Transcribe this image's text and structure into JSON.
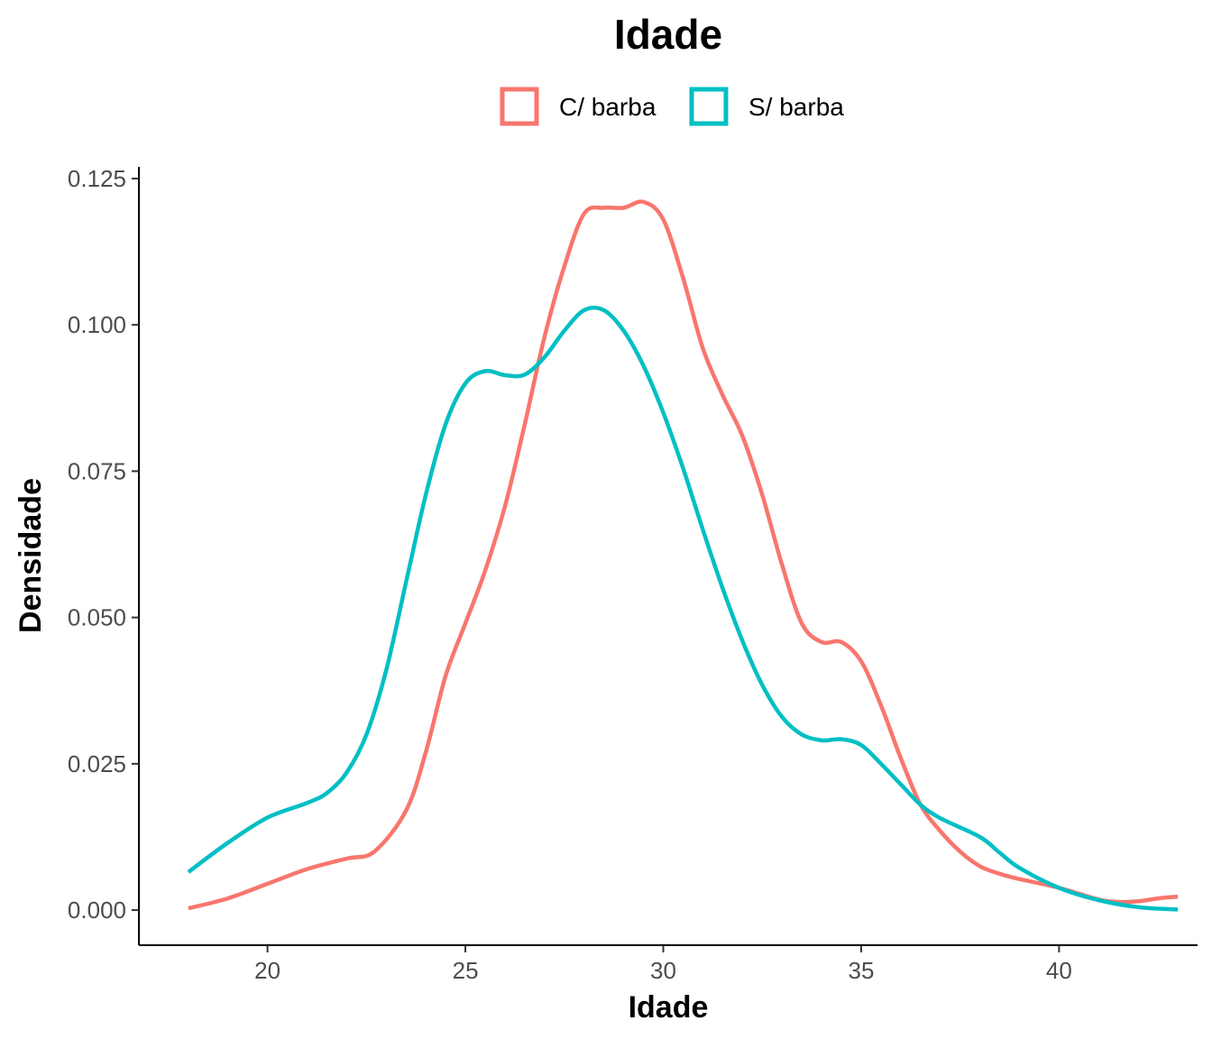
{
  "chart_data": {
    "type": "line",
    "title": "Idade",
    "xlabel": "Idade",
    "ylabel": "Densidade",
    "xlim": [
      16.75,
      43.5
    ],
    "ylim": [
      -0.006,
      0.127
    ],
    "x_ticks": [
      20,
      25,
      30,
      35,
      40
    ],
    "x_tick_labels": [
      "20",
      "25",
      "30",
      "35",
      "40"
    ],
    "y_ticks": [
      0.0,
      0.025,
      0.05,
      0.075,
      0.1,
      0.125
    ],
    "y_tick_labels": [
      "0.000",
      "0.025",
      "0.050",
      "0.075",
      "0.100",
      "0.125"
    ],
    "grid": false,
    "legend_position": "top",
    "series": [
      {
        "name": "C/ barba",
        "color": "#F8766D",
        "points": [
          [
            18.0,
            0.0003
          ],
          [
            19.0,
            0.002
          ],
          [
            20.0,
            0.0045
          ],
          [
            21.0,
            0.007
          ],
          [
            22.0,
            0.0088
          ],
          [
            22.7,
            0.01
          ],
          [
            23.5,
            0.017
          ],
          [
            24.0,
            0.027
          ],
          [
            24.5,
            0.04
          ],
          [
            25.0,
            0.049
          ],
          [
            25.5,
            0.058
          ],
          [
            26.0,
            0.069
          ],
          [
            26.5,
            0.083
          ],
          [
            27.0,
            0.098
          ],
          [
            27.5,
            0.11
          ],
          [
            28.0,
            0.119
          ],
          [
            28.5,
            0.12
          ],
          [
            29.0,
            0.12
          ],
          [
            29.5,
            0.121
          ],
          [
            30.0,
            0.118
          ],
          [
            30.5,
            0.108
          ],
          [
            31.0,
            0.096
          ],
          [
            31.5,
            0.088
          ],
          [
            32.0,
            0.081
          ],
          [
            32.5,
            0.071
          ],
          [
            33.0,
            0.059
          ],
          [
            33.5,
            0.049
          ],
          [
            34.0,
            0.0458
          ],
          [
            34.5,
            0.0458
          ],
          [
            35.0,
            0.0425
          ],
          [
            35.5,
            0.035
          ],
          [
            36.0,
            0.026
          ],
          [
            36.5,
            0.018
          ],
          [
            37.0,
            0.0135
          ],
          [
            37.5,
            0.01
          ],
          [
            38.0,
            0.0075
          ],
          [
            38.5,
            0.0062
          ],
          [
            39.0,
            0.0053
          ],
          [
            40.0,
            0.0038
          ],
          [
            41.0,
            0.0018
          ],
          [
            41.5,
            0.0014
          ],
          [
            42.0,
            0.0015
          ],
          [
            42.5,
            0.002
          ],
          [
            43.0,
            0.0023
          ]
        ]
      },
      {
        "name": "S/ barba",
        "color": "#00BFC4",
        "points": [
          [
            18.0,
            0.0065
          ],
          [
            19.0,
            0.0115
          ],
          [
            20.0,
            0.0158
          ],
          [
            21.0,
            0.0183
          ],
          [
            21.5,
            0.02
          ],
          [
            22.0,
            0.0235
          ],
          [
            22.5,
            0.03
          ],
          [
            23.0,
            0.041
          ],
          [
            23.5,
            0.056
          ],
          [
            24.0,
            0.071
          ],
          [
            24.5,
            0.083
          ],
          [
            25.0,
            0.09
          ],
          [
            25.5,
            0.0921
          ],
          [
            26.0,
            0.0914
          ],
          [
            26.5,
            0.0915
          ],
          [
            27.0,
            0.0945
          ],
          [
            27.5,
            0.099
          ],
          [
            28.0,
            0.1025
          ],
          [
            28.5,
            0.1025
          ],
          [
            29.0,
            0.099
          ],
          [
            29.5,
            0.093
          ],
          [
            30.0,
            0.085
          ],
          [
            30.5,
            0.0755
          ],
          [
            31.0,
            0.065
          ],
          [
            31.5,
            0.055
          ],
          [
            32.0,
            0.046
          ],
          [
            32.5,
            0.0385
          ],
          [
            33.0,
            0.033
          ],
          [
            33.5,
            0.03
          ],
          [
            34.0,
            0.029
          ],
          [
            34.5,
            0.0292
          ],
          [
            35.0,
            0.0282
          ],
          [
            35.5,
            0.025
          ],
          [
            36.0,
            0.0215
          ],
          [
            36.5,
            0.018
          ],
          [
            37.0,
            0.0157
          ],
          [
            38.0,
            0.0125
          ],
          [
            38.5,
            0.0098
          ],
          [
            39.0,
            0.0072
          ],
          [
            40.0,
            0.0038
          ],
          [
            41.0,
            0.0017
          ],
          [
            42.0,
            0.0005
          ],
          [
            43.0,
            0.0001
          ]
        ]
      }
    ]
  }
}
